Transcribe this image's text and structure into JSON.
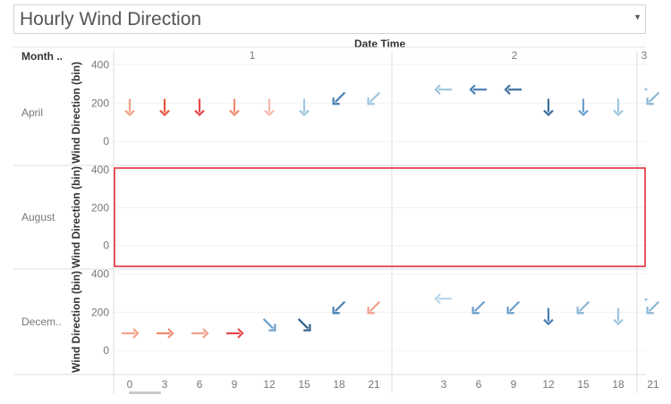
{
  "title": "Hourly Wind Direction",
  "header": {
    "rows_label": "Month ..",
    "columns_label": "Date Time"
  },
  "colors": {
    "warm_strong": "#e8494a",
    "warm_light": "#f3a089",
    "cool_light": "#9dc6e0",
    "cool_mid": "#6a9fcc",
    "cool_dark": "#2f5d8a",
    "highlight_border": "#e0303a"
  },
  "chart_data": {
    "type": "scatter",
    "mark": "arrow",
    "xlabel": "Date Time",
    "ylabel": "Wind Direction (bin)",
    "ylim": [
      -120,
      420
    ],
    "yticks": [
      "400",
      "200",
      "0"
    ],
    "day_groups": [
      "1",
      "2",
      "3"
    ],
    "hour_ticks": [
      "0",
      "3",
      "6",
      "9",
      "12",
      "15",
      "18",
      "21",
      "3",
      "6",
      "9",
      "12",
      "15",
      "18",
      "21"
    ],
    "rows": [
      {
        "label": "April",
        "points": [
          {
            "x": 0,
            "y": 180,
            "color": "#f3a089"
          },
          {
            "x": 3,
            "y": 180,
            "color": "#e8553f"
          },
          {
            "x": 6,
            "y": 180,
            "color": "#e8494a"
          },
          {
            "x": 9,
            "y": 180,
            "color": "#f08a6e"
          },
          {
            "x": 12,
            "y": 180,
            "color": "#f5b8ad"
          },
          {
            "x": 15,
            "y": 180,
            "color": "#9dc6e0"
          },
          {
            "x": 18,
            "y": 225,
            "color": "#4a7fb3"
          },
          {
            "x": 21,
            "y": 225,
            "color": "#9dc6e0"
          },
          {
            "x": 27,
            "y": 270,
            "color": "#9dc6e0"
          },
          {
            "x": 30,
            "y": 270,
            "color": "#4a7fb3"
          },
          {
            "x": 33,
            "y": 270,
            "color": "#3f6f9f"
          },
          {
            "x": 36,
            "y": 180,
            "color": "#3f6f9f"
          },
          {
            "x": 39,
            "y": 180,
            "color": "#6a9fcc"
          },
          {
            "x": 42,
            "y": 180,
            "color": "#9dc6e0"
          },
          {
            "x": 45,
            "y": 225,
            "color": "#8ab7d8"
          }
        ]
      },
      {
        "label": "August",
        "points": []
      },
      {
        "label": "Decem..",
        "points": [
          {
            "x": 0,
            "y": 90,
            "color": "#f3a089"
          },
          {
            "x": 3,
            "y": 90,
            "color": "#f08a6e"
          },
          {
            "x": 6,
            "y": 90,
            "color": "#f3a089"
          },
          {
            "x": 9,
            "y": 90,
            "color": "#e8494a"
          },
          {
            "x": 12,
            "y": 135,
            "color": "#6a9fcc"
          },
          {
            "x": 15,
            "y": 135,
            "color": "#2f5d8a"
          },
          {
            "x": 18,
            "y": 225,
            "color": "#4a7fb3"
          },
          {
            "x": 21,
            "y": 225,
            "color": "#f3a089"
          },
          {
            "x": 27,
            "y": 270,
            "color": "#b9d5e9"
          },
          {
            "x": 30,
            "y": 225,
            "color": "#6a9fcc"
          },
          {
            "x": 33,
            "y": 225,
            "color": "#6a9fcc"
          },
          {
            "x": 36,
            "y": 180,
            "color": "#4a7fb3"
          },
          {
            "x": 39,
            "y": 225,
            "color": "#8ab7d8"
          },
          {
            "x": 42,
            "y": 180,
            "color": "#9dc6e0"
          },
          {
            "x": 45,
            "y": 225,
            "color": "#8ab7d8"
          }
        ]
      }
    ],
    "highlighted_row": "August",
    "grid": true
  }
}
